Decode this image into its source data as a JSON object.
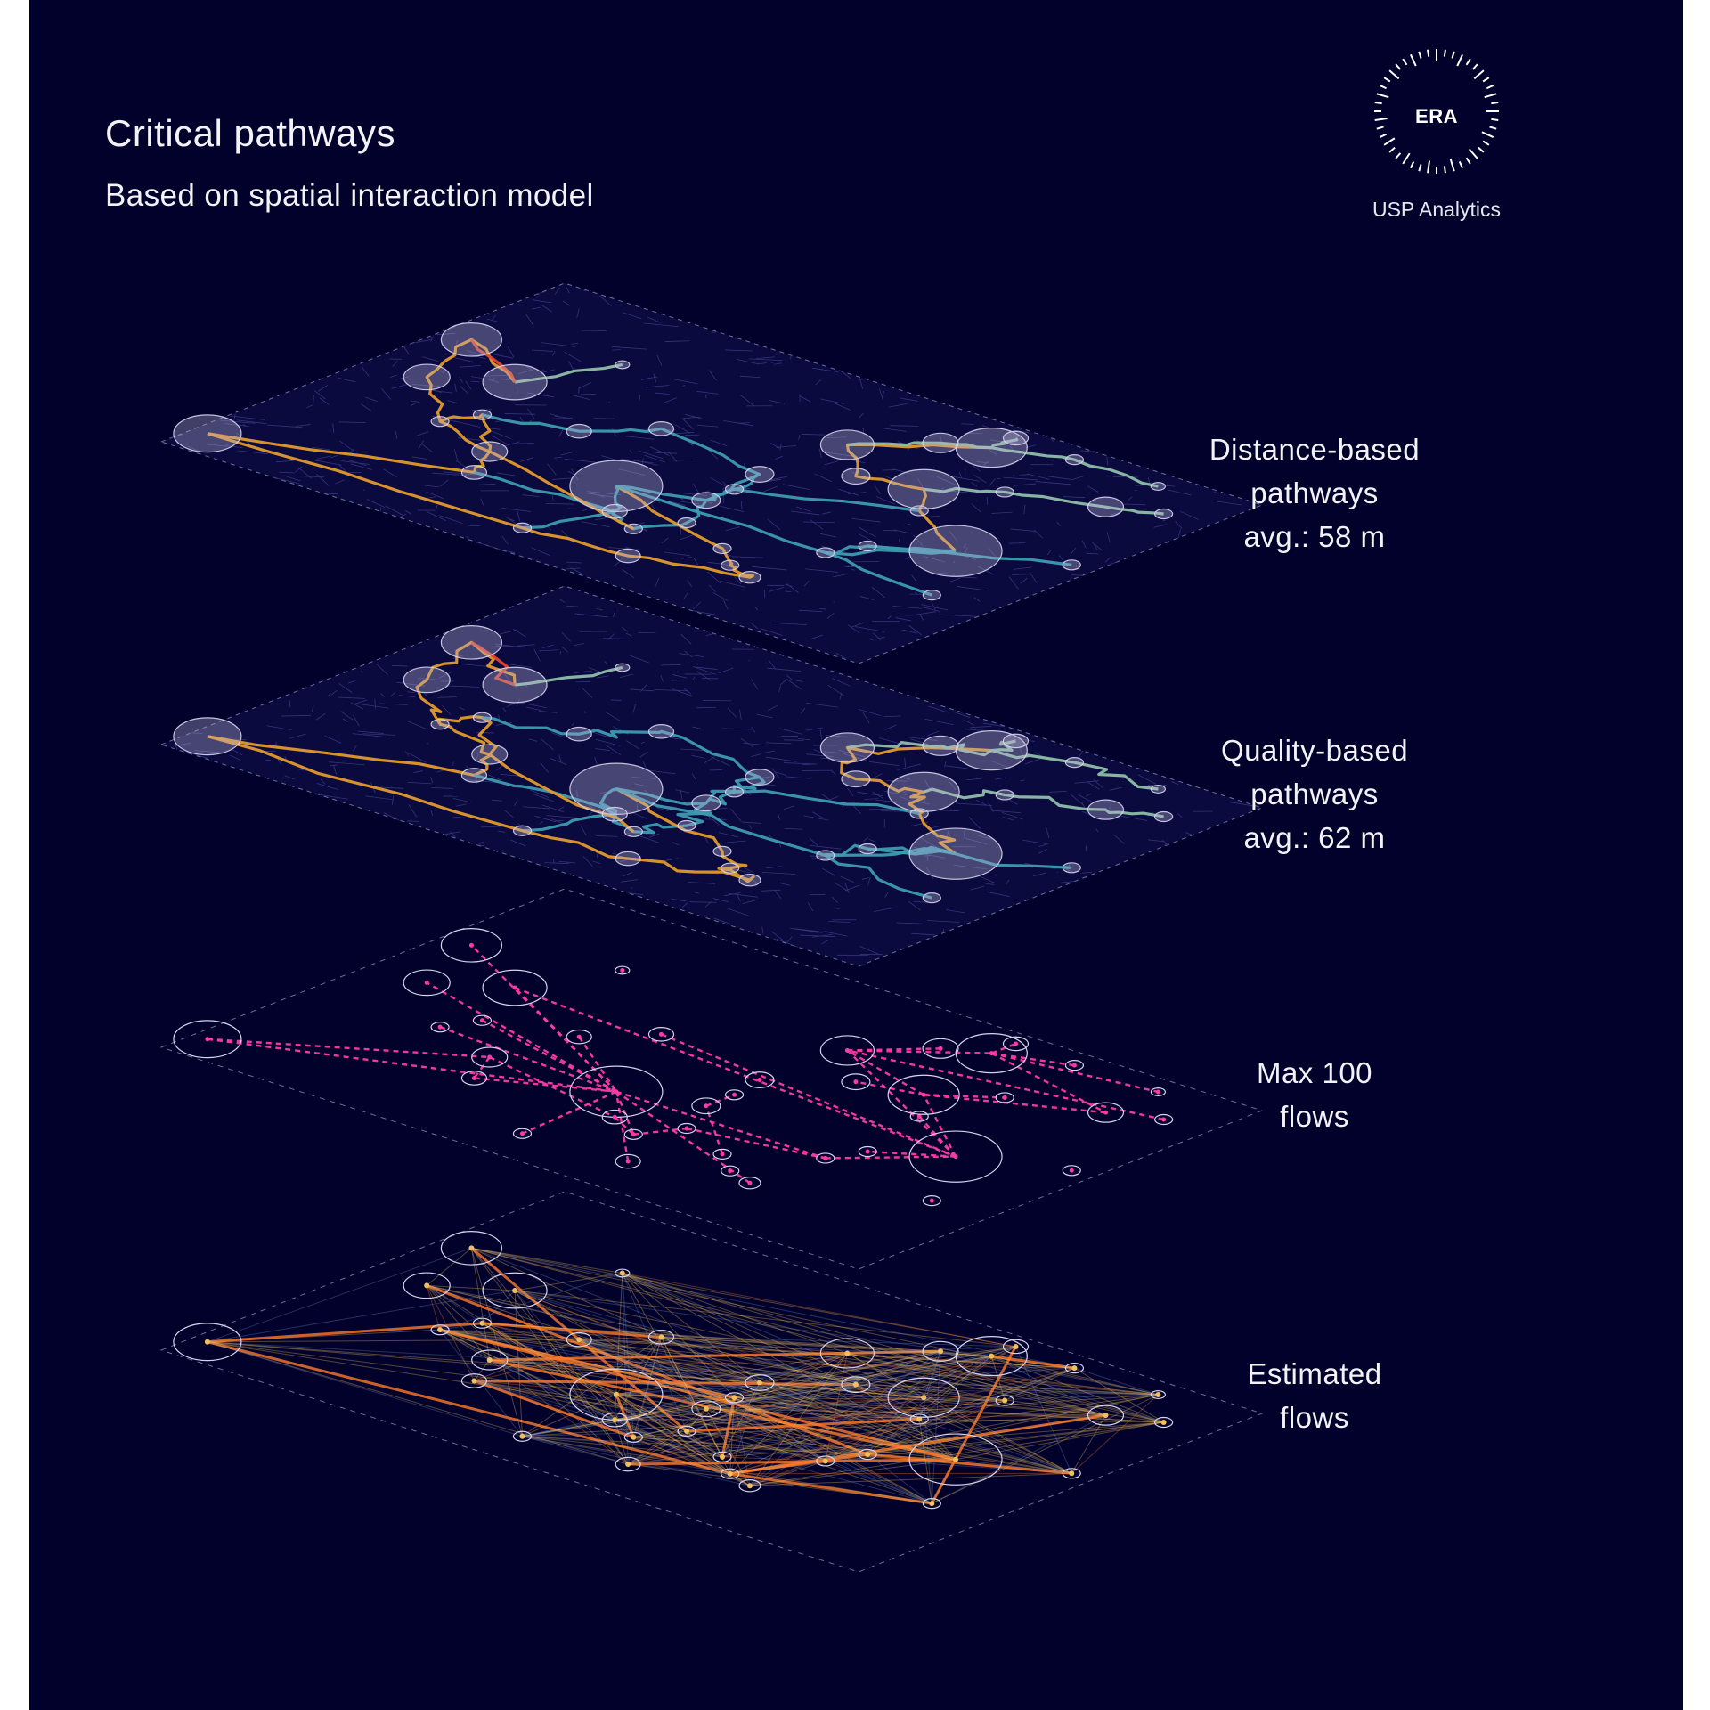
{
  "title": "Critical pathways",
  "subtitle": "Based on spatial interaction model",
  "logo": {
    "wordmark": "ERA",
    "caption": "USP Analytics",
    "icon": "sunburst-ring-icon"
  },
  "layers": [
    {
      "id": "distance",
      "lines": [
        "Distance-based",
        "pathways",
        "avg.: 58 m"
      ]
    },
    {
      "id": "quality",
      "lines": [
        "Quality-based",
        "pathways",
        "avg.: 62 m"
      ]
    },
    {
      "id": "max-flows",
      "lines": [
        "Max 100",
        "flows"
      ]
    },
    {
      "id": "estimated",
      "lines": [
        "Estimated",
        "flows"
      ]
    }
  ],
  "colors": {
    "background": "#01012b",
    "street_network": "#3b3b86",
    "path_orange": "#e39a2c",
    "path_teal": "#3d9bb0",
    "path_sage": "#8fbfa8",
    "path_red": "#e8452c",
    "max_flow_magenta": "#ff3aa8",
    "estimated_flow_gold": "#f0c060",
    "estimated_flow_orange": "#ff7a2a",
    "estimated_flow_blue": "#6a86b8",
    "node_fill": "#b9b4d8",
    "node_stroke": "#d8d4ee"
  }
}
